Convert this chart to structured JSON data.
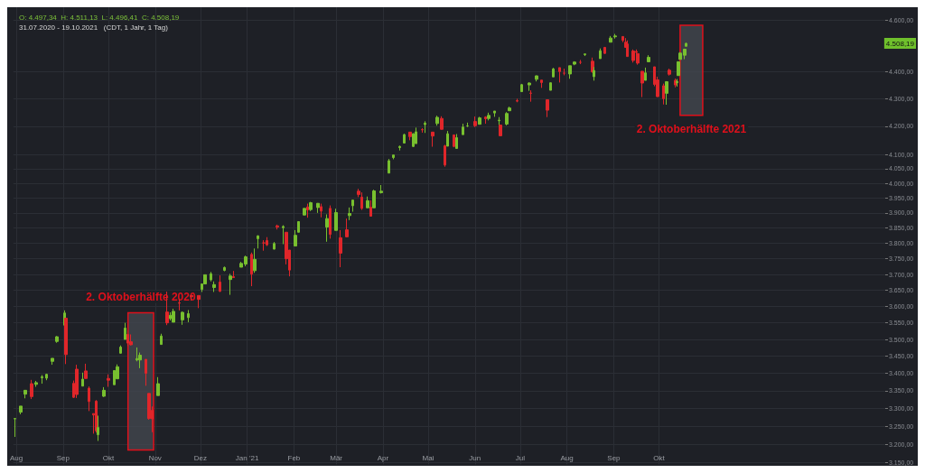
{
  "chart_data": {
    "type": "candlestick",
    "title": "O: 4.497,34  H: 4.511,13  L: 4.496,41  C: 4.508,19",
    "subtitle": "31.07.2020 - 19.10.2021   (CDT, 1 Jahr, 1 Tag)",
    "x": [
      "2020-07-31",
      "2020-08-04",
      "2020-08-07",
      "2020-08-11",
      "2020-08-14",
      "2020-08-18",
      "2020-08-21",
      "2020-08-25",
      "2020-08-28",
      "2020-09-02",
      "2020-09-03",
      "2020-09-08",
      "2020-09-10",
      "2020-09-14",
      "2020-09-16",
      "2020-09-18",
      "2020-09-21",
      "2020-09-23",
      "2020-09-24",
      "2020-09-28",
      "2020-10-01",
      "2020-10-05",
      "2020-10-07",
      "2020-10-09",
      "2020-10-12",
      "2020-10-14",
      "2020-10-16",
      "2020-10-20",
      "2020-10-22",
      "2020-10-26",
      "2020-10-28",
      "2020-10-30",
      "2020-11-03",
      "2020-11-05",
      "2020-11-09",
      "2020-11-11",
      "2020-11-13",
      "2020-11-17",
      "2020-11-19",
      "2020-11-23",
      "2020-11-25",
      "2020-11-30",
      "2020-12-02",
      "2020-12-04",
      "2020-12-08",
      "2020-12-10",
      "2020-12-14",
      "2020-12-17",
      "2020-12-21",
      "2020-12-23",
      "2020-12-28",
      "2020-12-31",
      "2021-01-04",
      "2021-01-06",
      "2021-01-08",
      "2021-01-12",
      "2021-01-14",
      "2021-01-19",
      "2021-01-21",
      "2021-01-25",
      "2021-01-27",
      "2021-01-29",
      "2021-02-02",
      "2021-02-04",
      "2021-02-08",
      "2021-02-10",
      "2021-02-12",
      "2021-02-17",
      "2021-02-19",
      "2021-02-23",
      "2021-02-25",
      "2021-03-01",
      "2021-03-04",
      "2021-03-08",
      "2021-03-10",
      "2021-03-12",
      "2021-03-16",
      "2021-03-18",
      "2021-03-22",
      "2021-03-24",
      "2021-03-26",
      "2021-03-31",
      "2021-04-05",
      "2021-04-08",
      "2021-04-12",
      "2021-04-15",
      "2021-04-19",
      "2021-04-21",
      "2021-04-23",
      "2021-04-27",
      "2021-04-29",
      "2021-05-04",
      "2021-05-07",
      "2021-05-10",
      "2021-05-12",
      "2021-05-14",
      "2021-05-18",
      "2021-05-20",
      "2021-05-24",
      "2021-05-27",
      "2021-06-01",
      "2021-06-04",
      "2021-06-08",
      "2021-06-10",
      "2021-06-14",
      "2021-06-17",
      "2021-06-18",
      "2021-06-22",
      "2021-06-24",
      "2021-06-29",
      "2021-07-02",
      "2021-07-07",
      "2021-07-08",
      "2021-07-12",
      "2021-07-15",
      "2021-07-19",
      "2021-07-21",
      "2021-07-23",
      "2021-07-27",
      "2021-07-30",
      "2021-08-03",
      "2021-08-06",
      "2021-08-10",
      "2021-08-13",
      "2021-08-18",
      "2021-08-19",
      "2021-08-23",
      "2021-08-26",
      "2021-08-30",
      "2021-09-02",
      "2021-09-07",
      "2021-09-09",
      "2021-09-10",
      "2021-09-14",
      "2021-09-16",
      "2021-09-17",
      "2021-09-20",
      "2021-09-22",
      "2021-09-24",
      "2021-09-28",
      "2021-09-30",
      "2021-10-04",
      "2021-10-06",
      "2021-10-08",
      "2021-10-12",
      "2021-10-13",
      "2021-10-14",
      "2021-10-15",
      "2021-10-18",
      "2021-10-19"
    ],
    "ohlc": [
      [
        3270,
        3272,
        3220,
        3271
      ],
      [
        3289,
        3306,
        3283,
        3306
      ],
      [
        3340,
        3352,
        3328,
        3351
      ],
      [
        3370,
        3381,
        3326,
        3333
      ],
      [
        3368,
        3378,
        3361,
        3373
      ],
      [
        3387,
        3395,
        3370,
        3390
      ],
      [
        3386,
        3399,
        3380,
        3397
      ],
      [
        3435,
        3444,
        3425,
        3444
      ],
      [
        3494,
        3510,
        3490,
        3508
      ],
      [
        3543,
        3588,
        3535,
        3580
      ],
      [
        3564,
        3564,
        3427,
        3455
      ],
      [
        3371,
        3379,
        3329,
        3331
      ],
      [
        3412,
        3425,
        3329,
        3339
      ],
      [
        3363,
        3402,
        3363,
        3383
      ],
      [
        3407,
        3428,
        3384,
        3385
      ],
      [
        3357,
        3362,
        3292,
        3319
      ],
      [
        3285,
        3285,
        3229,
        3281
      ],
      [
        3320,
        3323,
        3232,
        3237
      ],
      [
        3226,
        3279,
        3209,
        3246
      ],
      [
        3334,
        3360,
        3332,
        3351
      ],
      [
        3385,
        3397,
        3361,
        3380
      ],
      [
        3367,
        3409,
        3367,
        3408
      ],
      [
        3384,
        3426,
        3384,
        3419
      ],
      [
        3459,
        3482,
        3458,
        3477
      ],
      [
        3500,
        3550,
        3500,
        3534
      ],
      [
        3515,
        3528,
        3480,
        3489
      ],
      [
        3493,
        3515,
        3482,
        3484
      ],
      [
        3439,
        3476,
        3435,
        3443
      ],
      [
        3439,
        3461,
        3415,
        3453
      ],
      [
        3441,
        3441,
        3364,
        3400
      ],
      [
        3342,
        3342,
        3268,
        3271
      ],
      [
        3294,
        3305,
        3233,
        3270
      ],
      [
        3336,
        3389,
        3336,
        3370
      ],
      [
        3485,
        3517,
        3485,
        3510
      ],
      [
        3583,
        3646,
        3543,
        3550
      ],
      [
        3563,
        3582,
        3557,
        3573
      ],
      [
        3552,
        3593,
        3552,
        3585
      ],
      [
        3611,
        3623,
        3588,
        3610
      ],
      [
        3559,
        3585,
        3544,
        3582
      ],
      [
        3566,
        3589,
        3552,
        3578
      ],
      [
        3634,
        3635,
        3618,
        3630
      ],
      [
        3634,
        3634,
        3595,
        3622
      ],
      [
        3653,
        3670,
        3645,
        3670
      ],
      [
        3670,
        3699,
        3670,
        3699
      ],
      [
        3683,
        3708,
        3678,
        3702
      ],
      [
        3659,
        3678,
        3645,
        3668
      ],
      [
        3676,
        3697,
        3645,
        3647
      ],
      [
        3713,
        3725,
        3710,
        3722
      ],
      [
        3684,
        3702,
        3636,
        3695
      ],
      [
        3693,
        3711,
        3689,
        3690
      ],
      [
        3723,
        3740,
        3723,
        3735
      ],
      [
        3733,
        3760,
        3726,
        3756
      ],
      [
        3764,
        3770,
        3663,
        3701
      ],
      [
        3712,
        3783,
        3705,
        3748
      ],
      [
        3815,
        3826,
        3783,
        3824
      ],
      [
        3801,
        3810,
        3776,
        3801
      ],
      [
        3809,
        3820,
        3791,
        3795
      ],
      [
        3781,
        3804,
        3780,
        3799
      ],
      [
        3857,
        3861,
        3845,
        3853
      ],
      [
        3851,
        3859,
        3797,
        3855
      ],
      [
        3836,
        3836,
        3732,
        3750
      ],
      [
        3778,
        3778,
        3694,
        3714
      ],
      [
        3791,
        3843,
        3791,
        3826
      ],
      [
        3836,
        3872,
        3836,
        3871
      ],
      [
        3893,
        3915,
        3892,
        3915
      ],
      [
        3920,
        3931,
        3884,
        3910
      ],
      [
        3911,
        3937,
        3906,
        3934
      ],
      [
        3918,
        3933,
        3900,
        3932
      ],
      [
        3921,
        3931,
        3885,
        3906
      ],
      [
        3853,
        3895,
        3805,
        3881
      ],
      [
        3915,
        3925,
        3815,
        3829
      ],
      [
        3842,
        3914,
        3842,
        3901
      ],
      [
        3818,
        3843,
        3723,
        3768
      ],
      [
        3844,
        3881,
        3819,
        3821
      ],
      [
        3891,
        3918,
        3876,
        3898
      ],
      [
        3924,
        3944,
        3904,
        3943
      ],
      [
        3973,
        3981,
        3953,
        3962
      ],
      [
        3953,
        3969,
        3910,
        3915
      ],
      [
        3917,
        3955,
        3917,
        3941
      ],
      [
        3919,
        3942,
        3889,
        3889
      ],
      [
        3917,
        3978,
        3917,
        3974
      ],
      [
        3968,
        3994,
        3965,
        3973
      ],
      [
        4035,
        4084,
        4035,
        4078
      ],
      [
        4089,
        4098,
        4083,
        4098
      ],
      [
        4124,
        4131,
        4114,
        4128
      ],
      [
        4140,
        4173,
        4139,
        4170
      ],
      [
        4179,
        4180,
        4150,
        4163
      ],
      [
        4128,
        4175,
        4126,
        4173
      ],
      [
        4138,
        4195,
        4138,
        4180
      ],
      [
        4188,
        4193,
        4177,
        4187
      ],
      [
        4206,
        4218,
        4176,
        4211
      ],
      [
        4179,
        4180,
        4127,
        4165
      ],
      [
        4210,
        4238,
        4202,
        4232
      ],
      [
        4228,
        4236,
        4188,
        4189
      ],
      [
        4130,
        4134,
        4057,
        4063
      ],
      [
        4129,
        4183,
        4129,
        4173
      ],
      [
        4169,
        4170,
        4125,
        4128
      ],
      [
        4121,
        4172,
        4121,
        4159
      ],
      [
        4170,
        4209,
        4170,
        4197
      ],
      [
        4201,
        4213,
        4197,
        4201
      ],
      [
        4217,
        4235,
        4197,
        4202
      ],
      [
        4207,
        4234,
        4207,
        4230
      ],
      [
        4233,
        4236,
        4209,
        4227
      ],
      [
        4228,
        4249,
        4221,
        4239
      ],
      [
        4248,
        4255,
        4234,
        4255
      ],
      [
        4220,
        4233,
        4203,
        4222
      ],
      [
        4204,
        4204,
        4165,
        4166
      ],
      [
        4208,
        4251,
        4203,
        4246
      ],
      [
        4256,
        4271,
        4256,
        4266
      ],
      [
        4293,
        4300,
        4287,
        4291
      ],
      [
        4326,
        4355,
        4326,
        4352
      ],
      [
        4351,
        4361,
        4329,
        4358
      ],
      [
        4321,
        4331,
        4289,
        4320
      ],
      [
        4372,
        4386,
        4364,
        4385
      ],
      [
        4369,
        4369,
        4340,
        4360
      ],
      [
        4296,
        4297,
        4233,
        4258
      ],
      [
        4331,
        4360,
        4331,
        4359
      ],
      [
        4381,
        4415,
        4381,
        4411
      ],
      [
        4416,
        4416,
        4360,
        4401
      ],
      [
        4395,
        4412,
        4387,
        4395
      ],
      [
        4392,
        4423,
        4374,
        4423
      ],
      [
        4429,
        4440,
        4425,
        4437
      ],
      [
        4436,
        4445,
        4429,
        4436
      ],
      [
        4465,
        4468,
        4460,
        4468
      ],
      [
        4440,
        4454,
        4397,
        4400
      ],
      [
        4382,
        4418,
        4367,
        4405
      ],
      [
        4450,
        4489,
        4450,
        4480
      ],
      [
        4493,
        4495,
        4468,
        4470
      ],
      [
        4513,
        4537,
        4513,
        4529
      ],
      [
        4534,
        4545,
        4527,
        4537
      ],
      [
        4535,
        4535,
        4513,
        4520
      ],
      [
        4513,
        4529,
        4493,
        4493
      ],
      [
        4506,
        4520,
        4457,
        4458
      ],
      [
        4479,
        4485,
        4435,
        4443
      ],
      [
        4477,
        4485,
        4444,
        4474
      ],
      [
        4469,
        4471,
        4427,
        4433
      ],
      [
        4402,
        4403,
        4306,
        4358
      ],
      [
        4368,
        4416,
        4368,
        4396
      ],
      [
        4438,
        4463,
        4438,
        4455
      ],
      [
        4419,
        4419,
        4346,
        4353
      ],
      [
        4370,
        4382,
        4306,
        4308
      ],
      [
        4348,
        4356,
        4279,
        4300
      ],
      [
        4320,
        4365,
        4278,
        4363
      ],
      [
        4406,
        4412,
        4386,
        4391
      ],
      [
        4368,
        4375,
        4342,
        4351
      ],
      [
        4359,
        4373,
        4345,
        4364
      ],
      [
        4386,
        4440,
        4386,
        4438
      ],
      [
        4447,
        4475,
        4447,
        4471
      ],
      [
        4463,
        4488,
        4448,
        4486
      ],
      [
        4497.34,
        4511.13,
        4496.41,
        4508.19
      ]
    ],
    "xlim": [
      "2020-07-30",
      "2022-02-28"
    ],
    "xticks": [
      {
        "value": "2020-08-01",
        "label": "Aug"
      },
      {
        "value": "2020-09-01",
        "label": "Sep"
      },
      {
        "value": "2020-10-01",
        "label": "Okt"
      },
      {
        "value": "2020-11-01",
        "label": "Nov"
      },
      {
        "value": "2020-12-01",
        "label": "Dez"
      },
      {
        "value": "2021-01-01",
        "label": "Jan '21"
      },
      {
        "value": "2021-02-01",
        "label": "Feb"
      },
      {
        "value": "2021-03-01",
        "label": "Mär"
      },
      {
        "value": "2021-04-01",
        "label": "Apr"
      },
      {
        "value": "2021-05-01",
        "label": "Mai"
      },
      {
        "value": "2021-06-01",
        "label": "Jun"
      },
      {
        "value": "2021-07-01",
        "label": "Jul"
      },
      {
        "value": "2021-08-01",
        "label": "Aug"
      },
      {
        "value": "2021-09-01",
        "label": "Sep"
      },
      {
        "value": "2021-10-01",
        "label": "Okt"
      }
    ],
    "log": true,
    "ylim": [
      3145,
      4650
    ],
    "yticks": [
      {
        "value": 3150,
        "label": "3.150,00"
      },
      {
        "value": 3200,
        "label": "3.200,00"
      },
      {
        "value": 3250,
        "label": "3.250,00"
      },
      {
        "value": 3300,
        "label": "3.300,00"
      },
      {
        "value": 3350,
        "label": "3.350,00"
      },
      {
        "value": 3400,
        "label": "3.400,00"
      },
      {
        "value": 3450,
        "label": "3.450,00"
      },
      {
        "value": 3500,
        "label": "3.500,00"
      },
      {
        "value": 3550,
        "label": "3.550,00"
      },
      {
        "value": 3600,
        "label": "3.600,00"
      },
      {
        "value": 3650,
        "label": "3.650,00"
      },
      {
        "value": 3700,
        "label": "3.700,00"
      },
      {
        "value": 3750,
        "label": "3.750,00"
      },
      {
        "value": 3800,
        "label": "3.800,00"
      },
      {
        "value": 3850,
        "label": "3.850,00"
      },
      {
        "value": 3900,
        "label": "3.900,00"
      },
      {
        "value": 3950,
        "label": "3.950,00"
      },
      {
        "value": 4000,
        "label": "4.000,00"
      },
      {
        "value": 4050,
        "label": "4.050,00"
      },
      {
        "value": 4100,
        "label": "4.100,00"
      },
      {
        "value": 4200,
        "label": "4.200,00"
      },
      {
        "value": 4300,
        "label": "4.300,00"
      },
      {
        "value": 4400,
        "label": "4.400,00"
      },
      {
        "value": 4600,
        "label": "4.600,00"
      }
    ],
    "grid": true,
    "bands": [
      {
        "axis": "x",
        "from": "2020-10-14",
        "to": "2020-10-31",
        "label": "2. Oktoberhälfte 2020",
        "color": "#e0101b"
      },
      {
        "axis": "x",
        "from": "2021-10-15",
        "to": "2021-10-30",
        "label": "2. Oktoberhälfte 2021",
        "color": "#e0101b"
      }
    ],
    "annotations": [
      "4.508,19"
    ]
  }
}
